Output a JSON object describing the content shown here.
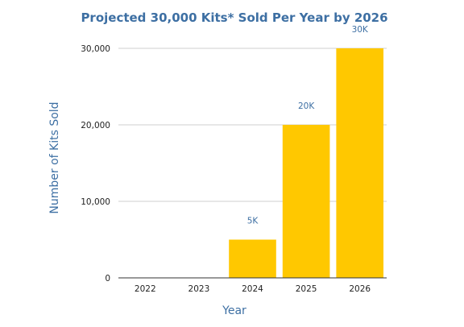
{
  "chart_data": {
    "type": "bar",
    "title": "Projected 30,000 Kits* Sold Per Year by 2026",
    "xlabel": "Year",
    "ylabel": "Number of Kits Sold",
    "categories": [
      "2022",
      "2023",
      "2024",
      "2025",
      "2026"
    ],
    "values": [
      0,
      0,
      5000,
      20000,
      30000
    ],
    "data_labels": [
      "",
      "",
      "5K",
      "20K",
      "30K"
    ],
    "ylim": [
      0,
      30000
    ],
    "yticks": [
      0,
      10000,
      20000,
      30000
    ],
    "ytick_labels": [
      "0",
      "10,000",
      "20,000",
      "30,000"
    ],
    "grid": true,
    "legend": "none",
    "bar_color": "#ffc800",
    "text_color": "#3d6fa3"
  }
}
